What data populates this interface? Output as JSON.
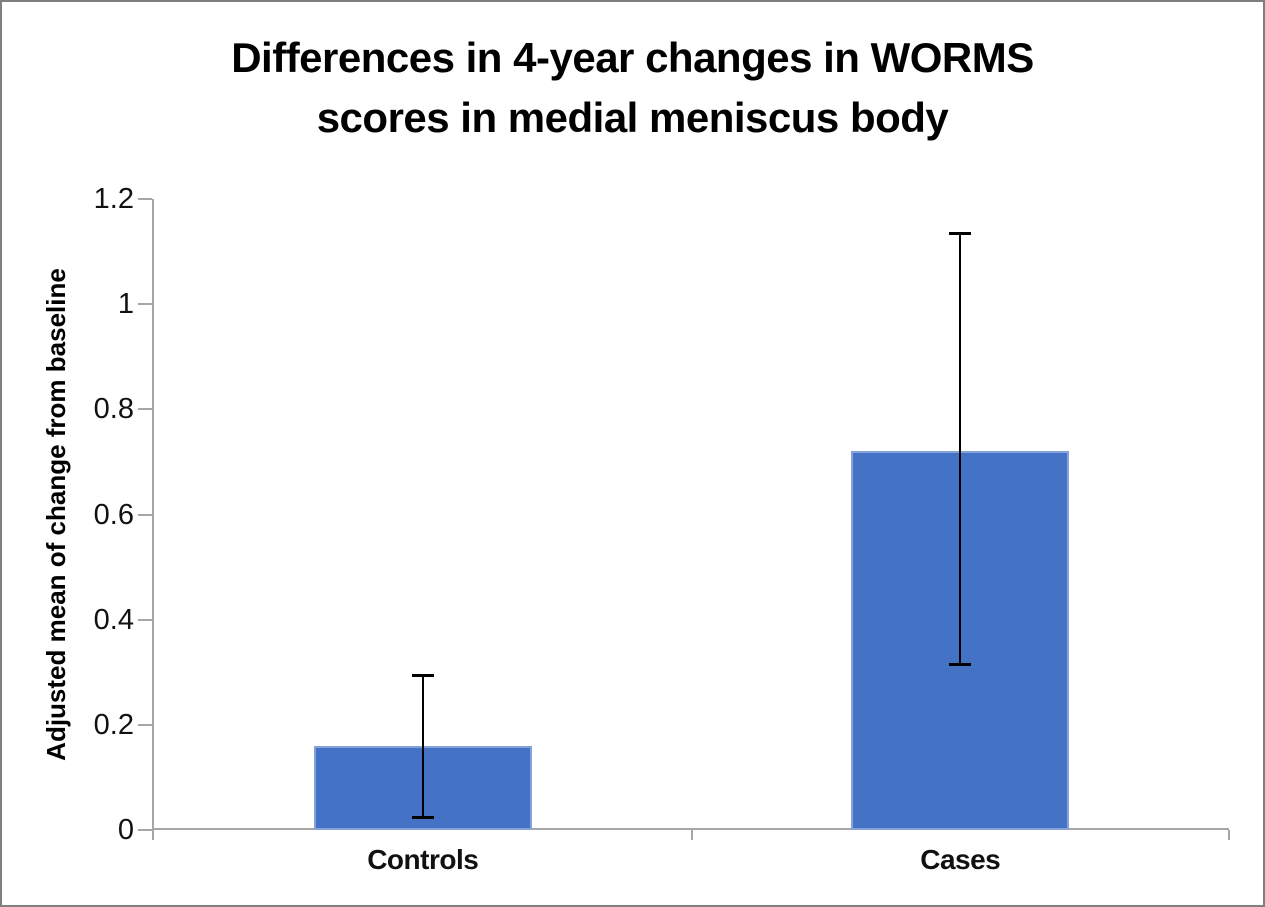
{
  "frame": {
    "background": "#ffffff",
    "border_color": "#7f7f7f"
  },
  "title_lines": [
    "Differences in 4-year changes in WORMS",
    "scores in medial meniscus body"
  ],
  "chart_data": {
    "type": "bar",
    "title": "Differences in 4-year changes in WORMS scores in medial meniscus body",
    "categories": [
      "Controls",
      "Cases"
    ],
    "values": [
      0.16,
      0.72
    ],
    "error_bars": {
      "upper": [
        0.295,
        1.135
      ],
      "lower": [
        0.023,
        0.313
      ]
    },
    "xlabel": "",
    "ylabel": "Adjusted mean of change from baseline",
    "ylim": [
      0,
      1.2
    ],
    "yticks": [
      0,
      0.2,
      0.4,
      0.6,
      0.8,
      1,
      1.2
    ],
    "ytick_labels": [
      "0",
      "0.2",
      "0.4",
      "0.6",
      "0.8",
      "1",
      "1.2"
    ],
    "grid": false,
    "legend": false,
    "bar_color": "#4472c4",
    "axis_color": "#a6a6a6",
    "error_bar_color": "#000000",
    "title_color": "#000000",
    "text_color": "#111111"
  }
}
